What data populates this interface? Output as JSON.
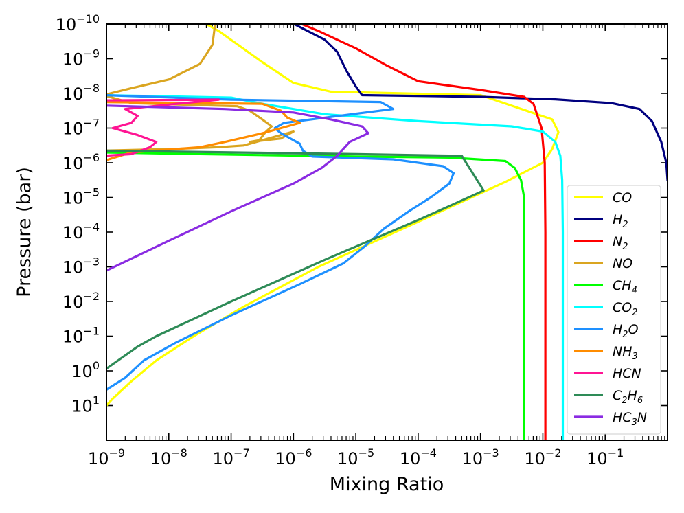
{
  "chart_data": {
    "type": "line",
    "title": "",
    "xlabel": "Mixing Ratio",
    "ylabel": "Pressure (bar)",
    "xscale": "log",
    "yscale": "log",
    "xlim_exp": [
      -9,
      0.0
    ],
    "ylim_exp": [
      2,
      -10
    ],
    "y_inverted": true,
    "x_ticks": [
      {
        "exp": -9,
        "label": "10",
        "sup": "−9"
      },
      {
        "exp": -8,
        "label": "10",
        "sup": "−8"
      },
      {
        "exp": -7,
        "label": "10",
        "sup": "−7"
      },
      {
        "exp": -6,
        "label": "10",
        "sup": "−6"
      },
      {
        "exp": -5,
        "label": "10",
        "sup": "−5"
      },
      {
        "exp": -4,
        "label": "10",
        "sup": "−4"
      },
      {
        "exp": -3,
        "label": "10",
        "sup": "−3"
      },
      {
        "exp": -2,
        "label": "10",
        "sup": "−2"
      },
      {
        "exp": -1,
        "label": "10",
        "sup": "−1"
      }
    ],
    "y_ticks": [
      {
        "exp": -10,
        "label": "10",
        "sup": "−10"
      },
      {
        "exp": -9,
        "label": "10",
        "sup": "−9"
      },
      {
        "exp": -8,
        "label": "10",
        "sup": "−8"
      },
      {
        "exp": -7,
        "label": "10",
        "sup": "−7"
      },
      {
        "exp": -6,
        "label": "10",
        "sup": "−6"
      },
      {
        "exp": -5,
        "label": "10",
        "sup": "−5"
      },
      {
        "exp": -4,
        "label": "10",
        "sup": "−4"
      },
      {
        "exp": -3,
        "label": "10",
        "sup": "−3"
      },
      {
        "exp": -2,
        "label": "10",
        "sup": "−2"
      },
      {
        "exp": -1,
        "label": "10",
        "sup": "−1"
      },
      {
        "exp": 0,
        "label": "10",
        "sup": "0"
      },
      {
        "exp": 1,
        "label": "10",
        "sup": "1"
      }
    ],
    "legend": {
      "placement": "lower-right"
    },
    "series": [
      {
        "name": "CO",
        "base": "CO",
        "sub": "",
        "color": "#ffff00",
        "points": [
          [
            -9.05,
            1.1
          ],
          [
            -8.9,
            0.8
          ],
          [
            -8.6,
            0.3
          ],
          [
            -8.2,
            -0.3
          ],
          [
            -7.6,
            -1.0
          ],
          [
            -6.8,
            -1.85
          ],
          [
            -5.6,
            -3.0
          ],
          [
            -4.0,
            -4.3
          ],
          [
            -2.6,
            -5.45
          ],
          [
            -2.0,
            -6.0
          ],
          [
            -1.85,
            -6.4
          ],
          [
            -1.75,
            -6.88
          ],
          [
            -1.85,
            -7.25
          ],
          [
            -3.0,
            -7.95
          ],
          [
            -5.4,
            -8.05
          ],
          [
            -6.0,
            -8.3
          ],
          [
            -6.5,
            -8.9
          ],
          [
            -7.2,
            -9.8
          ],
          [
            -7.5,
            -10.1
          ]
        ]
      },
      {
        "name": "H2",
        "base": "H",
        "sub": "2",
        "color": "#00007f",
        "points": [
          [
            -6.1,
            -10.1
          ],
          [
            -5.5,
            -9.55
          ],
          [
            -5.3,
            -9.2
          ],
          [
            -5.15,
            -8.65
          ],
          [
            -5.0,
            -8.2
          ],
          [
            -4.9,
            -7.95
          ],
          [
            -3.0,
            -7.9
          ],
          [
            -1.8,
            -7.83
          ],
          [
            -0.9,
            -7.72
          ],
          [
            -0.45,
            -7.55
          ],
          [
            -0.25,
            -7.2
          ],
          [
            -0.1,
            -6.6
          ],
          [
            -0.02,
            -6.0
          ],
          [
            0.0,
            -5.5
          ]
        ]
      },
      {
        "name": "N2",
        "base": "N",
        "sub": "2",
        "color": "#ff0000",
        "points": [
          [
            -6.0,
            -10.1
          ],
          [
            -5.6,
            -9.8
          ],
          [
            -5.0,
            -9.3
          ],
          [
            -4.5,
            -8.8
          ],
          [
            -4.0,
            -8.35
          ],
          [
            -3.0,
            -8.1
          ],
          [
            -2.3,
            -7.9
          ],
          [
            -2.15,
            -7.7
          ],
          [
            -2.02,
            -7.0
          ],
          [
            -1.97,
            -6.0
          ],
          [
            -1.96,
            -4.0
          ],
          [
            -1.96,
            0.0
          ],
          [
            -1.96,
            2.0
          ]
        ]
      },
      {
        "name": "NO",
        "base": "NO",
        "sub": "",
        "color": "#daa520",
        "points": [
          [
            -7.25,
            -10.1
          ],
          [
            -7.3,
            -9.4
          ],
          [
            -7.5,
            -8.85
          ],
          [
            -8.0,
            -8.4
          ],
          [
            -8.6,
            -8.15
          ],
          [
            -9.05,
            -7.95
          ],
          [
            -8.6,
            -7.72
          ],
          [
            -6.9,
            -7.63
          ],
          [
            -6.7,
            -7.5
          ],
          [
            -6.5,
            -7.25
          ],
          [
            -6.35,
            -7.05
          ],
          [
            -6.45,
            -6.88
          ],
          [
            -6.55,
            -6.65
          ],
          [
            -6.7,
            -6.6
          ],
          [
            -6.2,
            -6.7
          ],
          [
            -6.0,
            -6.9
          ],
          [
            -6.8,
            -6.5
          ],
          [
            -7.2,
            -6.45
          ],
          [
            -7.9,
            -6.4
          ],
          [
            -9.05,
            -6.35
          ]
        ]
      },
      {
        "name": "CH4",
        "base": "CH",
        "sub": "4",
        "color": "#00ff00",
        "points": [
          [
            -9.05,
            -6.3
          ],
          [
            -7.5,
            -6.25
          ],
          [
            -5.0,
            -6.18
          ],
          [
            -3.5,
            -6.15
          ],
          [
            -2.6,
            -6.05
          ],
          [
            -2.45,
            -5.85
          ],
          [
            -2.35,
            -5.5
          ],
          [
            -2.3,
            -5.0
          ],
          [
            -2.3,
            -4.0
          ],
          [
            -2.3,
            0.0
          ],
          [
            -2.3,
            2.0
          ]
        ]
      },
      {
        "name": "CO2",
        "base": "CO",
        "sub": "2",
        "color": "#00ffff",
        "points": [
          [
            -9.05,
            -7.95
          ],
          [
            -7.0,
            -7.88
          ],
          [
            -6.5,
            -7.7
          ],
          [
            -5.5,
            -7.4
          ],
          [
            -4.0,
            -7.2
          ],
          [
            -2.5,
            -7.05
          ],
          [
            -2.0,
            -6.9
          ],
          [
            -1.8,
            -6.6
          ],
          [
            -1.72,
            -6.2
          ],
          [
            -1.69,
            -5.5
          ],
          [
            -1.68,
            -4.0
          ],
          [
            -1.68,
            0.0
          ],
          [
            -1.68,
            2.0
          ]
        ]
      },
      {
        "name": "H2O",
        "base": "H",
        "sub": "2",
        "sub2": "O",
        "color": "#1e90ff",
        "points": [
          [
            -9.05,
            0.6
          ],
          [
            -8.7,
            0.2
          ],
          [
            -8.4,
            -0.3
          ],
          [
            -7.9,
            -0.8
          ],
          [
            -7.0,
            -1.6
          ],
          [
            -5.9,
            -2.5
          ],
          [
            -5.2,
            -3.1
          ],
          [
            -4.85,
            -3.6
          ],
          [
            -4.55,
            -4.1
          ],
          [
            -4.15,
            -4.6
          ],
          [
            -3.8,
            -5.0
          ],
          [
            -3.5,
            -5.4
          ],
          [
            -3.43,
            -5.7
          ],
          [
            -3.6,
            -5.9
          ],
          [
            -4.4,
            -6.1
          ],
          [
            -5.7,
            -6.18
          ],
          [
            -5.85,
            -6.35
          ],
          [
            -5.9,
            -6.55
          ],
          [
            -6.2,
            -6.85
          ],
          [
            -6.3,
            -7.0
          ],
          [
            -6.15,
            -7.15
          ],
          [
            -4.4,
            -7.55
          ],
          [
            -4.6,
            -7.75
          ],
          [
            -7.0,
            -7.82
          ],
          [
            -9.05,
            -7.95
          ]
        ]
      },
      {
        "name": "NH3",
        "base": "NH",
        "sub": "3",
        "color": "#ff8c00",
        "points": [
          [
            -9.05,
            -6.05
          ],
          [
            -8.6,
            -6.3
          ],
          [
            -7.5,
            -6.45
          ],
          [
            -7.1,
            -6.6
          ],
          [
            -6.5,
            -6.85
          ],
          [
            -6.1,
            -7.05
          ],
          [
            -5.9,
            -7.15
          ],
          [
            -6.1,
            -7.3
          ],
          [
            -6.2,
            -7.5
          ],
          [
            -6.5,
            -7.7
          ],
          [
            -9.05,
            -7.75
          ]
        ]
      },
      {
        "name": "HCN",
        "base": "HCN",
        "sub": "",
        "color": "#ff1493",
        "points": [
          [
            -9.05,
            -6.2
          ],
          [
            -8.6,
            -6.25
          ],
          [
            -8.3,
            -6.45
          ],
          [
            -8.2,
            -6.6
          ],
          [
            -8.5,
            -6.8
          ],
          [
            -8.9,
            -7.0
          ],
          [
            -8.6,
            -7.15
          ],
          [
            -8.5,
            -7.35
          ],
          [
            -8.7,
            -7.55
          ],
          [
            -7.2,
            -7.82
          ],
          [
            -9.05,
            -7.8
          ]
        ]
      },
      {
        "name": "C2H6",
        "base": "C",
        "sub": "2",
        "sub2": "H",
        "sub3": "6",
        "color": "#2e8b57",
        "points": [
          [
            -9.05,
            0.0
          ],
          [
            -8.5,
            -0.7
          ],
          [
            -8.2,
            -1.0
          ],
          [
            -7.0,
            -2.0
          ],
          [
            -5.5,
            -3.2
          ],
          [
            -4.0,
            -4.35
          ],
          [
            -3.5,
            -4.75
          ],
          [
            -2.95,
            -5.2
          ],
          [
            -3.3,
            -6.2
          ],
          [
            -5.0,
            -6.25
          ],
          [
            -7.0,
            -6.3
          ],
          [
            -9.05,
            -6.35
          ]
        ]
      },
      {
        "name": "HC3N",
        "base": "HC",
        "sub": "3",
        "sub2": "N",
        "color": "#8a2be2",
        "points": [
          [
            -9.05,
            -2.85
          ],
          [
            -8.0,
            -3.75
          ],
          [
            -7.0,
            -4.6
          ],
          [
            -6.0,
            -5.4
          ],
          [
            -5.55,
            -5.85
          ],
          [
            -5.3,
            -6.2
          ],
          [
            -5.1,
            -6.6
          ],
          [
            -4.8,
            -6.85
          ],
          [
            -4.9,
            -7.05
          ],
          [
            -5.4,
            -7.25
          ],
          [
            -6.0,
            -7.45
          ],
          [
            -7.1,
            -7.55
          ],
          [
            -9.05,
            -7.65
          ]
        ]
      }
    ]
  }
}
